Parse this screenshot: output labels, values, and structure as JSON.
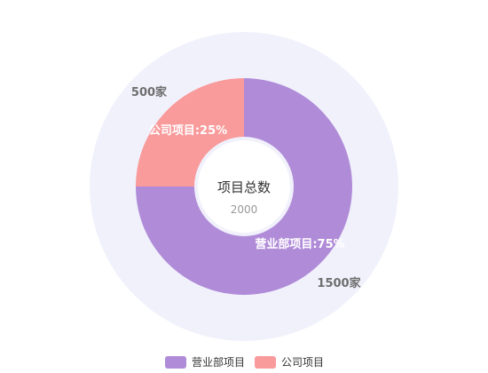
{
  "chart_data": {
    "type": "pie",
    "variant": "donut",
    "center": {
      "title": "项目总数",
      "value": "2000"
    },
    "slices": [
      {
        "name": "营业部项目",
        "value": 1500,
        "percent": 75,
        "inner_label": "营业部项目:75%",
        "outer_label": "1500家",
        "color": "#b08cd8"
      },
      {
        "name": "公司项目",
        "value": 500,
        "percent": 25,
        "inner_label": "公司项目:25%",
        "outer_label": "500家",
        "color": "#f99a9b"
      }
    ],
    "legend": {
      "position": "bottom-center"
    }
  },
  "colors": {
    "halo": "#f1f1fc",
    "center_disc": "#ffffff"
  }
}
